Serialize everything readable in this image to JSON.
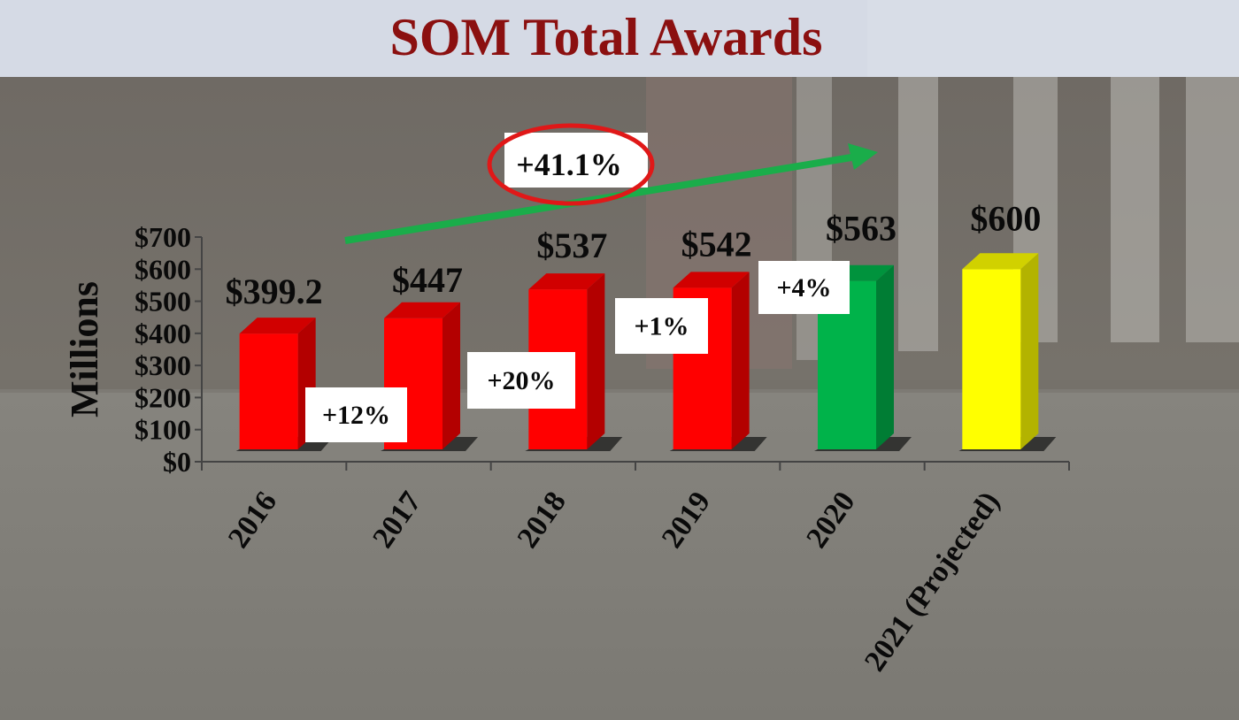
{
  "colors": {
    "header_bg": "#d5dae5",
    "title": "#8b1010",
    "bar_red": "#ff0000",
    "bar_green": "#00b34a",
    "bar_yellow": "#ffff00",
    "trend_arrow": "#1aad4a",
    "highlight_ring": "#e01818"
  },
  "chart_data": {
    "type": "bar",
    "title": "SOM Total Awards",
    "ylabel": "Millions",
    "xlabel": "",
    "ylim": [
      0,
      700
    ],
    "yticks": [
      0,
      100,
      200,
      300,
      400,
      500,
      600,
      700
    ],
    "ytick_labels": [
      "$0",
      "$100",
      "$200",
      "$300",
      "$400",
      "$500",
      "$600",
      "$700"
    ],
    "categories": [
      "2016",
      "2017",
      "2018",
      "2019",
      "2020",
      "2021 (Projected)"
    ],
    "values": [
      399.2,
      447,
      537,
      542,
      563,
      600
    ],
    "value_labels": [
      "$399.2",
      "$447",
      "$537",
      "$542",
      "$563",
      "$600"
    ],
    "bar_colors": [
      "#ff0000",
      "#ff0000",
      "#ff0000",
      "#ff0000",
      "#00b34a",
      "#ffff00"
    ],
    "growth_labels": [
      "+12%",
      "+20%",
      "+1%",
      "+4%"
    ],
    "overall_growth": "+41.1%",
    "legend": "none",
    "grid": false
  }
}
